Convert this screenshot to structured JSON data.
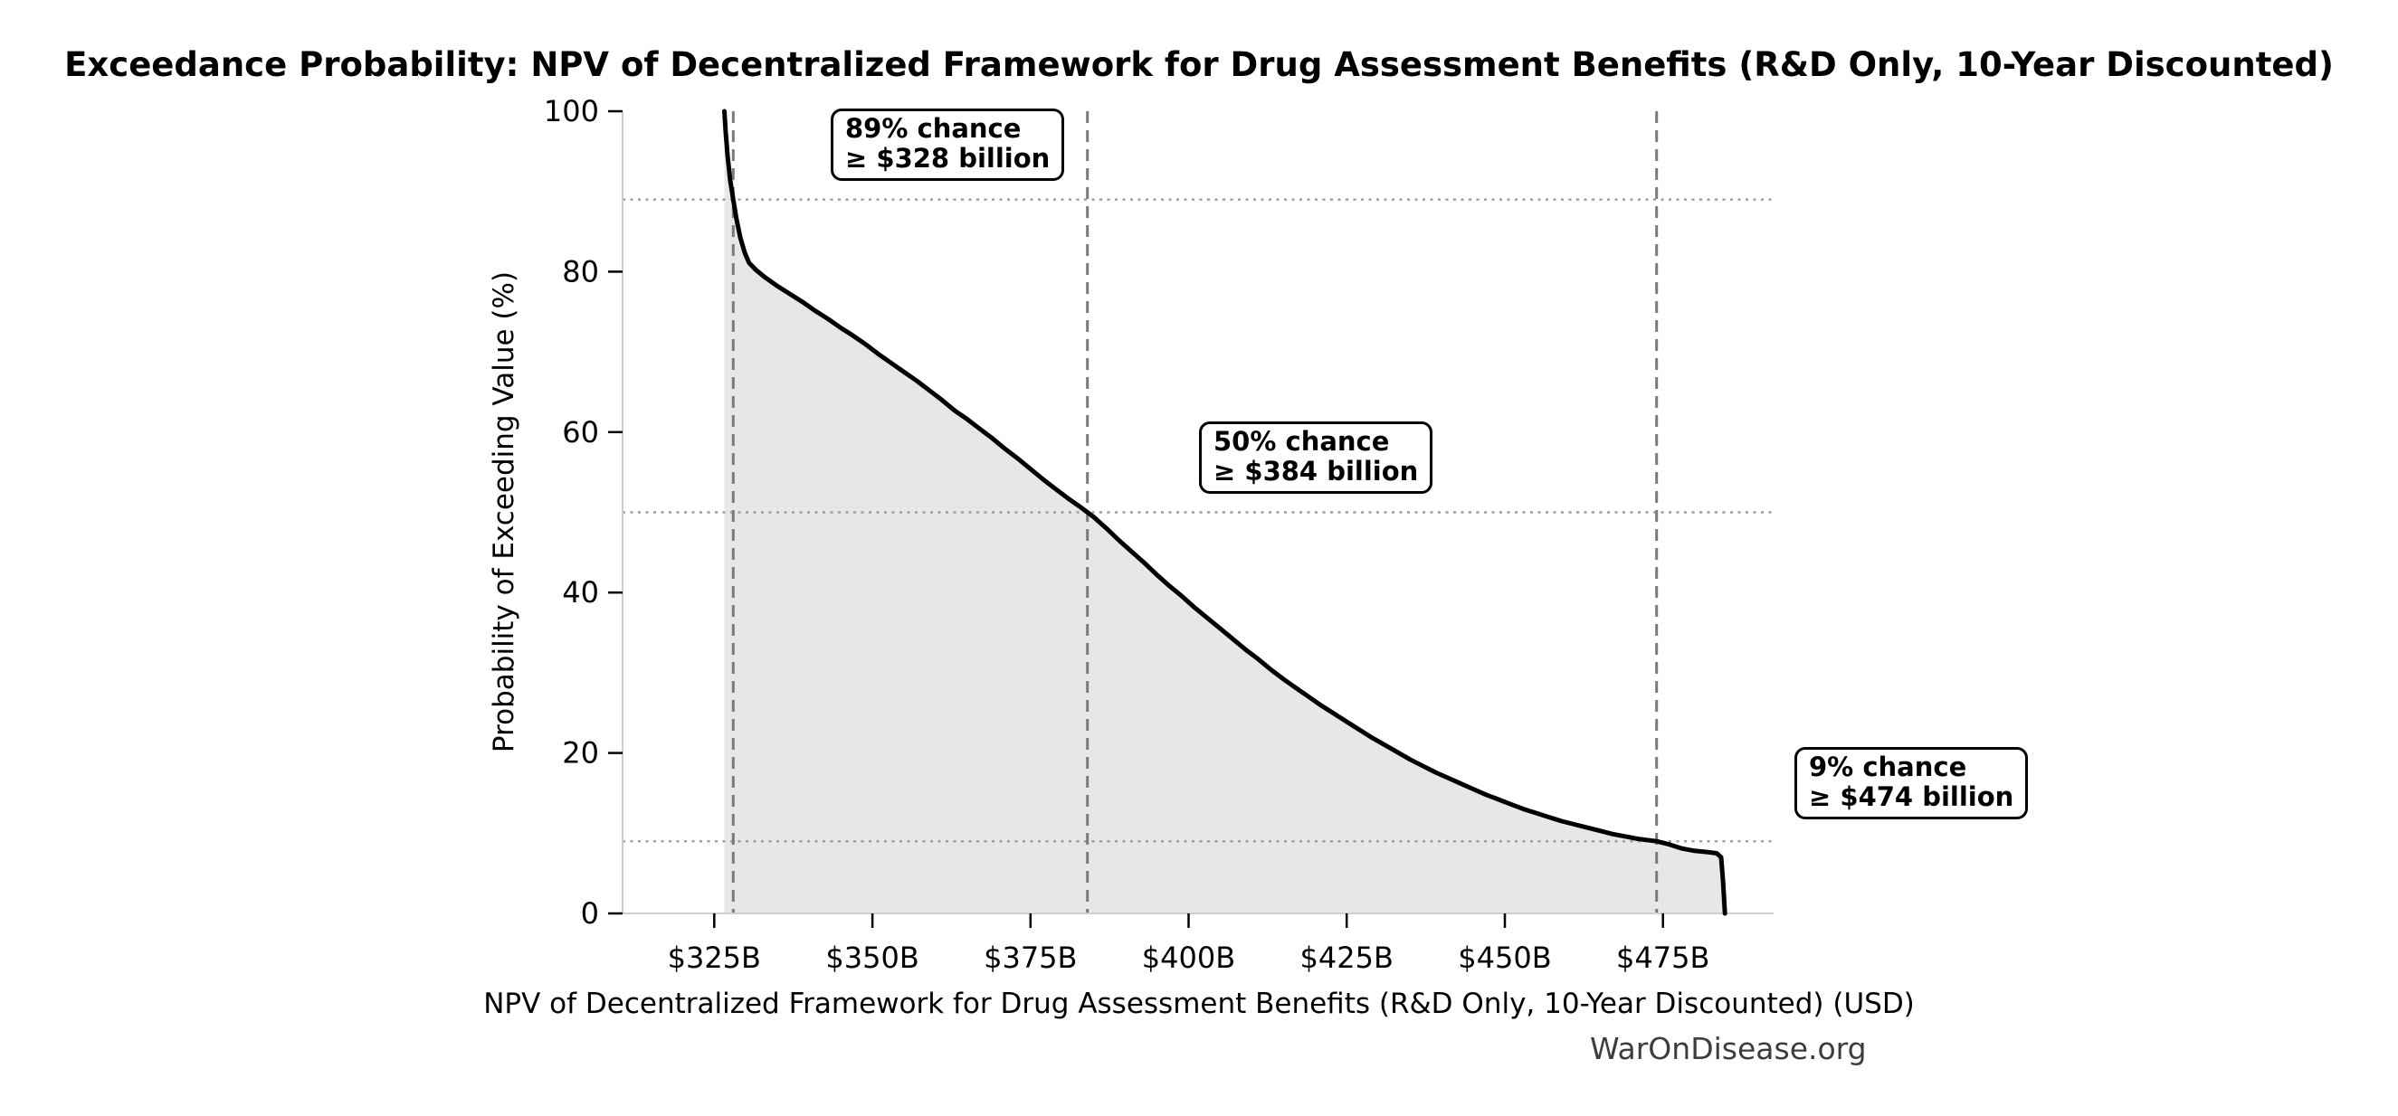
{
  "watermark": "WarOnDisease.org",
  "chart_data": {
    "type": "line",
    "title": "Exceedance Probability: NPV of Decentralized Framework for Drug Assessment Benefits (R&D Only, 10-Year Discounted)",
    "xlabel": "NPV of Decentralized Framework for Drug Assessment Benefits (R&D Only, 10-Year Discounted) (USD)",
    "ylabel": "Probability of Exceeding Value (%)",
    "xlim": [
      310.5,
      492.5
    ],
    "ylim": [
      0,
      100
    ],
    "grid": "reference lines only",
    "legend": "none",
    "x_unit": "billions USD",
    "xtick_values": [
      325,
      350,
      375,
      400,
      425,
      450,
      475
    ],
    "xtick_labels": [
      "$325B",
      "$350B",
      "$375B",
      "$400B",
      "$425B",
      "$450B",
      "$475B"
    ],
    "ytick_values": [
      0,
      20,
      40,
      60,
      80,
      100
    ],
    "ytick_labels": [
      "0",
      "20",
      "40",
      "60",
      "80",
      "100"
    ],
    "line_color": "#000000",
    "fill_color": "#e7e7e7",
    "dashed_line_color": "#7a7a7a",
    "dotted_line_color": "#9e9e9e",
    "spine_color": "#cfcfcf",
    "reference_lines": {
      "vertical_dashed_x": [
        328,
        384,
        474
      ],
      "horizontal_dotted_y": [
        89,
        50,
        9
      ]
    },
    "annotations": [
      {
        "line1": "89% chance",
        "line2": "≥ $328 billion",
        "x": 328,
        "y": 89
      },
      {
        "line1": "50% chance",
        "line2": "≥ $384 billion",
        "x": 384,
        "y": 50
      },
      {
        "line1": "9% chance",
        "line2": "≥ $474 billion",
        "x": 474,
        "y": 9
      }
    ],
    "series": [
      {
        "name": "exceedance-curve",
        "points": [
          [
            326.6,
            100
          ],
          [
            326.8,
            97.5
          ],
          [
            327.1,
            94.5
          ],
          [
            327.5,
            91.5
          ],
          [
            328,
            89
          ],
          [
            328.5,
            86.6
          ],
          [
            329.1,
            84.3
          ],
          [
            329.8,
            82.4
          ],
          [
            330.5,
            81.1
          ],
          [
            331.6,
            80.2
          ],
          [
            333,
            79.3
          ],
          [
            335,
            78.2
          ],
          [
            337,
            77.2
          ],
          [
            339,
            76.2
          ],
          [
            341,
            75.1
          ],
          [
            343,
            74.1
          ],
          [
            345,
            73
          ],
          [
            347,
            72
          ],
          [
            349,
            70.9
          ],
          [
            351,
            69.7
          ],
          [
            353,
            68.6
          ],
          [
            355,
            67.5
          ],
          [
            357,
            66.4
          ],
          [
            359,
            65.2
          ],
          [
            361,
            64
          ],
          [
            363,
            62.7
          ],
          [
            365,
            61.6
          ],
          [
            367,
            60.4
          ],
          [
            369,
            59.2
          ],
          [
            371,
            57.9
          ],
          [
            373,
            56.7
          ],
          [
            375,
            55.4
          ],
          [
            377,
            54.1
          ],
          [
            379,
            52.9
          ],
          [
            381,
            51.7
          ],
          [
            383,
            50.6
          ],
          [
            385,
            49.4
          ],
          [
            387,
            48
          ],
          [
            389,
            46.5
          ],
          [
            391,
            45.1
          ],
          [
            393,
            43.7
          ],
          [
            395,
            42.2
          ],
          [
            397,
            40.8
          ],
          [
            399,
            39.5
          ],
          [
            401,
            38.1
          ],
          [
            403,
            36.8
          ],
          [
            405,
            35.5
          ],
          [
            407,
            34.2
          ],
          [
            409,
            32.9
          ],
          [
            411,
            31.7
          ],
          [
            413,
            30.4
          ],
          [
            415,
            29.2
          ],
          [
            417,
            28.1
          ],
          [
            419,
            27
          ],
          [
            421,
            25.9
          ],
          [
            423,
            24.9
          ],
          [
            425,
            23.9
          ],
          [
            427,
            22.9
          ],
          [
            429,
            21.9
          ],
          [
            431,
            21
          ],
          [
            433,
            20.1
          ],
          [
            435,
            19.2
          ],
          [
            437,
            18.4
          ],
          [
            439,
            17.6
          ],
          [
            441,
            16.9
          ],
          [
            443,
            16.2
          ],
          [
            445,
            15.5
          ],
          [
            447,
            14.8
          ],
          [
            449,
            14.2
          ],
          [
            451,
            13.6
          ],
          [
            453,
            13
          ],
          [
            455,
            12.5
          ],
          [
            457,
            12
          ],
          [
            459,
            11.5
          ],
          [
            461,
            11.1
          ],
          [
            463,
            10.7
          ],
          [
            465,
            10.3
          ],
          [
            467,
            9.9
          ],
          [
            469,
            9.6
          ],
          [
            471,
            9.3
          ],
          [
            473,
            9.1
          ],
          [
            474,
            9
          ],
          [
            476,
            8.6
          ],
          [
            478,
            8.1
          ],
          [
            480,
            7.8
          ],
          [
            482,
            7.65
          ],
          [
            483.5,
            7.5
          ],
          [
            484.2,
            7
          ],
          [
            484.5,
            4
          ],
          [
            484.8,
            0
          ]
        ]
      }
    ]
  }
}
